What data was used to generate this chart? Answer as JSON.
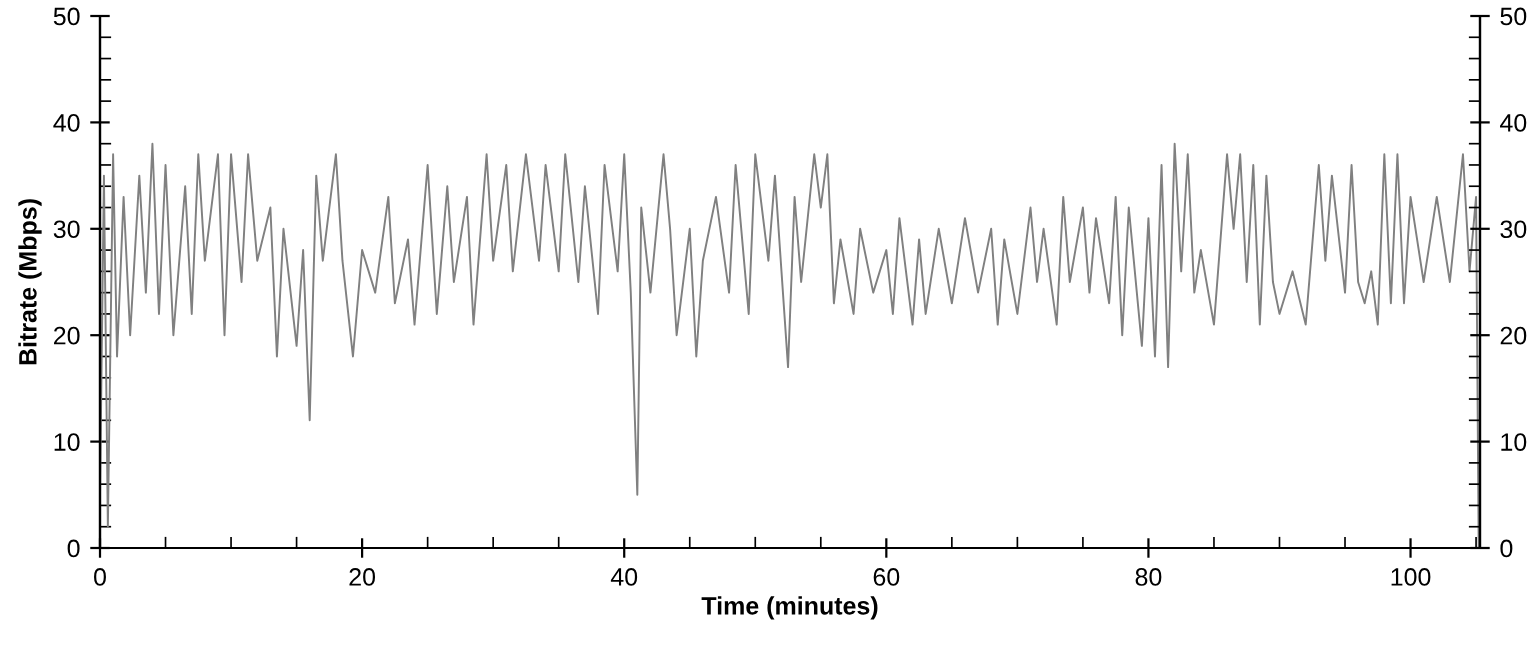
{
  "chart_data": {
    "type": "line",
    "xlabel": "Time (minutes)",
    "ylabel": "Bitrate (Mbps)",
    "xlim": [
      0,
      105.3
    ],
    "xticks": [
      0,
      20,
      40,
      60,
      80,
      100
    ],
    "ylim": [
      0,
      50
    ],
    "yticks": [
      0,
      10,
      20,
      30,
      40,
      50
    ],
    "y2lim": [
      0,
      50
    ],
    "y2ticks": [
      0,
      10,
      20,
      30,
      40,
      50
    ],
    "marker": "none",
    "line_style": "solid",
    "series": [
      {
        "color": "#808080",
        "x": [
          0,
          0.3,
          0.6,
          1,
          1.3,
          1.8,
          2.3,
          3,
          3.5,
          4,
          4.5,
          5,
          5.6,
          6.5,
          7,
          7.5,
          8,
          9,
          9.5,
          10,
          10.8,
          11.3,
          12,
          13,
          13.5,
          14,
          15,
          15.5,
          16,
          16.5,
          17,
          18,
          18.5,
          19.3,
          20,
          21,
          22,
          22.5,
          23.5,
          24,
          25,
          25.7,
          26.5,
          27,
          28,
          28.5,
          29.5,
          30,
          31,
          31.5,
          32.5,
          33.5,
          34,
          35,
          35.5,
          36.5,
          37,
          38,
          38.5,
          39.5,
          40,
          40.5,
          41,
          41.3,
          42,
          43,
          43.5,
          44,
          45,
          45.5,
          46,
          47,
          48,
          48.5,
          49.5,
          50,
          51,
          51.5,
          52,
          52.5,
          53,
          53.5,
          54.5,
          55,
          55.5,
          56,
          56.5,
          57.5,
          58,
          59,
          60,
          60.5,
          61,
          62,
          62.5,
          63,
          64,
          65,
          66,
          67,
          68,
          68.5,
          69,
          70,
          71,
          71.5,
          72,
          73,
          73.5,
          74,
          75,
          75.5,
          76,
          77,
          77.5,
          78,
          78.5,
          79.5,
          80,
          80.5,
          81,
          81.5,
          82,
          82.5,
          83,
          83.5,
          84,
          85,
          86,
          86.5,
          87,
          87.5,
          88,
          88.5,
          89,
          89.5,
          90,
          91,
          92,
          93,
          93.5,
          94,
          95,
          95.5,
          96,
          96.5,
          97,
          97.5,
          98,
          98.5,
          99,
          99.5,
          100,
          101,
          102,
          103,
          104,
          104.5,
          105,
          105.2
        ],
        "values": [
          5,
          35,
          2,
          37,
          18,
          33,
          20,
          35,
          24,
          38,
          22,
          36,
          20,
          34,
          22,
          37,
          27,
          37,
          20,
          37,
          25,
          37,
          27,
          32,
          18,
          30,
          19,
          28,
          12,
          35,
          27,
          37,
          27,
          18,
          28,
          24,
          33,
          23,
          29,
          21,
          36,
          22,
          34,
          25,
          33,
          21,
          37,
          27,
          36,
          26,
          37,
          27,
          36,
          26,
          37,
          25,
          34,
          22,
          36,
          26,
          37,
          24,
          5,
          32,
          24,
          37,
          30,
          20,
          30,
          18,
          27,
          33,
          24,
          36,
          22,
          37,
          27,
          35,
          26,
          17,
          33,
          25,
          37,
          32,
          37,
          23,
          29,
          22,
          30,
          24,
          28,
          22,
          31,
          21,
          29,
          22,
          30,
          23,
          31,
          24,
          30,
          21,
          29,
          22,
          32,
          25,
          30,
          21,
          33,
          25,
          32,
          24,
          31,
          23,
          33,
          20,
          32,
          19,
          31,
          18,
          36,
          17,
          38,
          26,
          37,
          24,
          28,
          21,
          37,
          30,
          37,
          25,
          36,
          21,
          35,
          25,
          22,
          26,
          21,
          36,
          27,
          35,
          24,
          36,
          25,
          23,
          26,
          21,
          37,
          23,
          37,
          23,
          33,
          25,
          33,
          25,
          37,
          26,
          33,
          0
        ]
      }
    ]
  }
}
